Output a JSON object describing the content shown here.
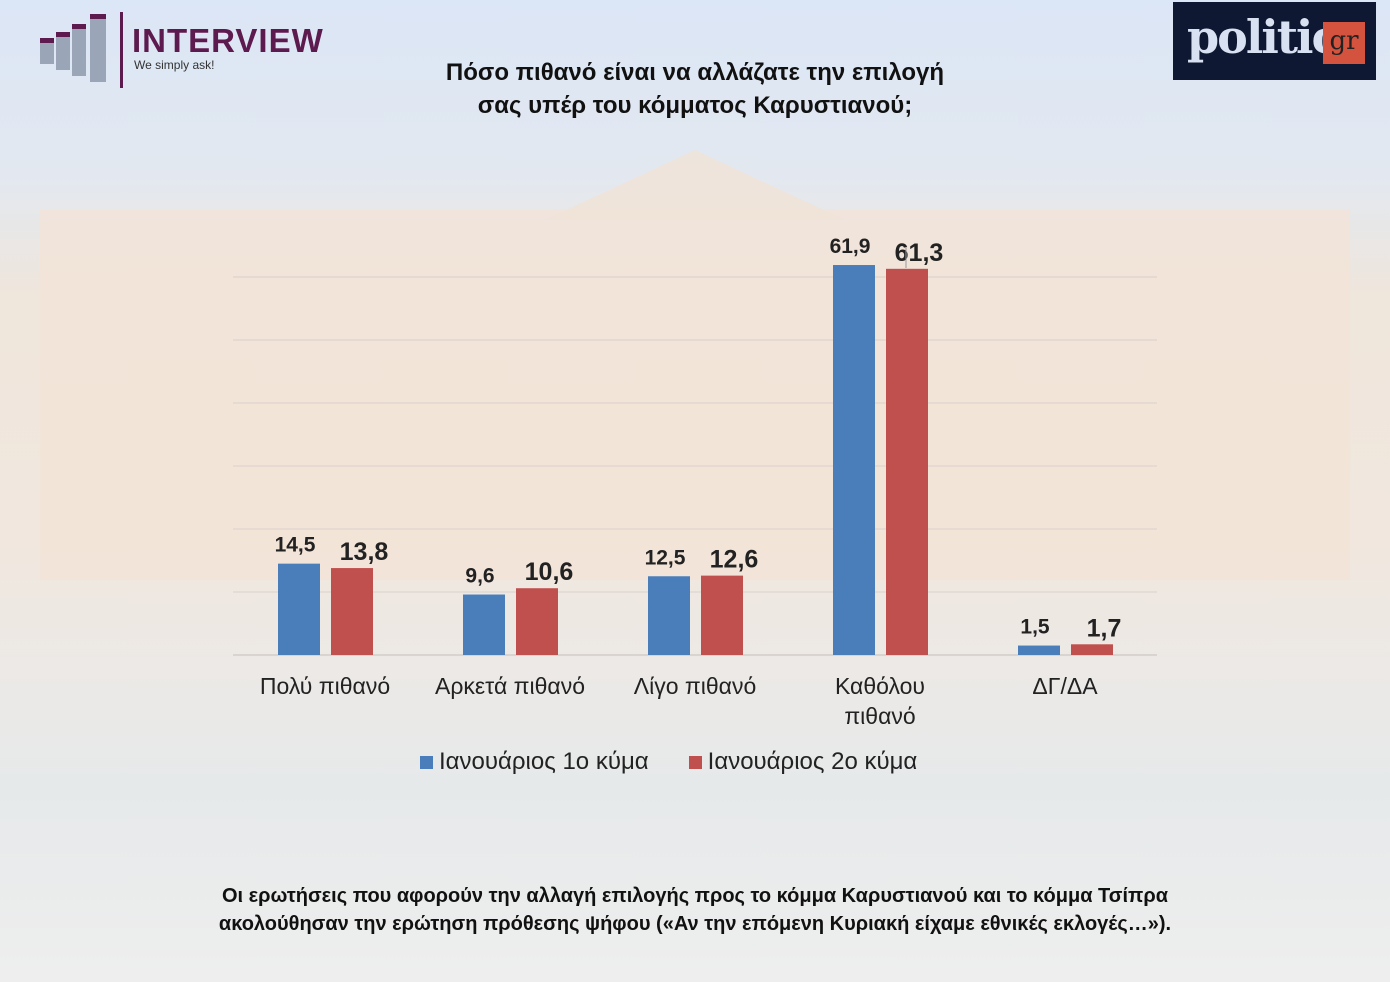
{
  "logo": {
    "name": "INTERVIEW",
    "tagline": "We simply ask!"
  },
  "publisher_logo": {
    "text": "politic",
    "suffix": "gr"
  },
  "footnote": "Οι ερωτήσεις που αφορούν την αλλαγή επιλογής προς το κόμμα Καρυστιανού και το κόμμα Τσίπρα ακολούθησαν την ερώτηση πρόθεσης ψήφου («Αν την επόμενη Κυριακή είχαμε εθνικές εκλογές…»).",
  "chart_data": {
    "type": "bar",
    "title": "Πόσο πιθανό είναι να αλλάζατε την επιλογή σας υπέρ του κόμματος Καρυστιανού;",
    "categories": [
      "Πολύ πιθανό",
      "Αρκετά πιθανό",
      "Λίγο πιθανό",
      "Καθόλου πιθανό",
      "ΔΓ/ΔΑ"
    ],
    "series": [
      {
        "name": "Ιανουάριος 1ο κύμα",
        "color": "#4a7ebb",
        "values": [
          14.5,
          9.6,
          12.5,
          61.9,
          1.5
        ],
        "labels": [
          "14,5",
          "9,6",
          "12,5",
          "61,9",
          "1,5"
        ]
      },
      {
        "name": "Ιανουάριος 2ο κύμα",
        "color": "#c0504d",
        "values": [
          13.8,
          10.6,
          12.6,
          61.3,
          1.7
        ],
        "labels": [
          "13,8",
          "10,6",
          "12,6",
          "61,3",
          "1,7"
        ]
      }
    ],
    "ylim": [
      0,
      60
    ],
    "grid": true,
    "legend": "bottom"
  }
}
